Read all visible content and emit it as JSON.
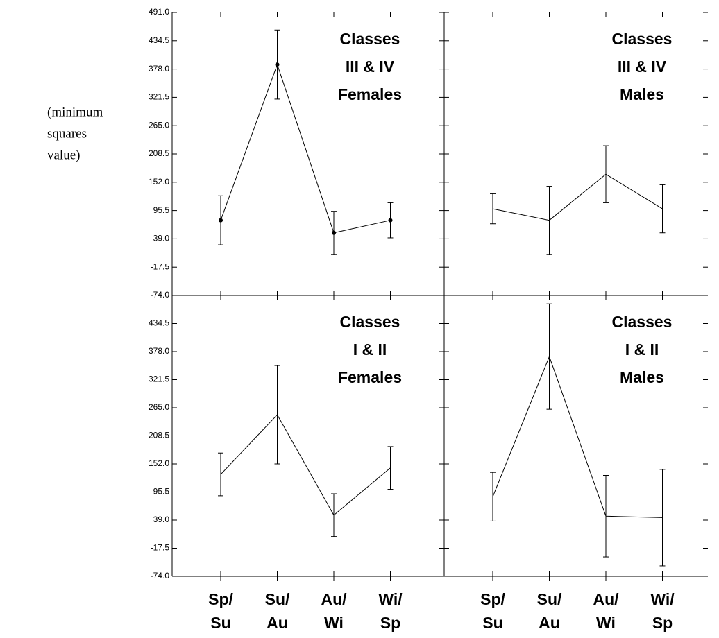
{
  "annotation": [
    "(minimum",
    "squares",
    "value)"
  ],
  "chart_data": [
    {
      "type": "line",
      "title": [
        "Classes",
        "III & IV",
        "Females"
      ],
      "markers": true,
      "color": "#000000",
      "series": [
        {
          "values": [
            76,
            387,
            51,
            76
          ],
          "errors": [
            49,
            69,
            43,
            35
          ]
        }
      ],
      "ylim": [
        -74,
        491
      ],
      "yticks": [
        {
          "value": 491,
          "label": "491.0"
        },
        {
          "value": 434.5,
          "label": "434.5"
        },
        {
          "value": 378,
          "label": "378.0"
        },
        {
          "value": 321.5,
          "label": "321.5"
        },
        {
          "value": 265,
          "label": "265.0"
        },
        {
          "value": 208.5,
          "label": "208.5"
        },
        {
          "value": 152,
          "label": "152.0"
        },
        95.5,
        {
          "value": 39,
          "label": "39.0"
        },
        -17.5,
        {
          "value": -74,
          "label": "-74.0"
        }
      ]
    },
    {
      "type": "line",
      "title": [
        "Classes",
        "III & IV",
        "Males"
      ],
      "markers": false,
      "color": "#000000",
      "series": [
        {
          "values": [
            99,
            76,
            168,
            99
          ],
          "errors": [
            30,
            68,
            57,
            48
          ]
        }
      ],
      "ylim": [
        -74,
        491
      ]
    },
    {
      "type": "line",
      "title": [
        "Classes",
        "I & II",
        "Females"
      ],
      "markers": false,
      "color": "#000000",
      "categories": [
        [
          "Sp/",
          "Su"
        ],
        [
          "Su/",
          "Au"
        ],
        [
          "Au/",
          "Wi"
        ],
        [
          "Wi/",
          "Sp"
        ]
      ],
      "series": [
        {
          "values": [
            131,
            251,
            49,
            144
          ],
          "errors": [
            43,
            99,
            43,
            43
          ]
        }
      ],
      "ylim": [
        -74,
        491
      ],
      "yticks": [
        {
          "value": 434.5,
          "label": "434.5"
        },
        {
          "value": 378,
          "label": "378.0"
        },
        {
          "value": 321.5,
          "label": "321.5"
        },
        {
          "value": 265,
          "label": "265.0"
        },
        {
          "value": 208.5,
          "label": "208.5"
        },
        {
          "value": 152,
          "label": "152.0"
        },
        95.5,
        {
          "value": 39,
          "label": "39.0"
        },
        -17.5,
        {
          "value": -74,
          "label": "-74.0"
        }
      ]
    },
    {
      "type": "line",
      "title": [
        "Classes",
        "I & II",
        "Males"
      ],
      "markers": false,
      "color": "#000000",
      "categories": [
        [
          "Sp/",
          "Su"
        ],
        [
          "Su/",
          "Au"
        ],
        [
          "Au/",
          "Wi"
        ],
        [
          "Wi/",
          "Sp"
        ]
      ],
      "series": [
        {
          "values": [
            86,
            368,
            47,
            44
          ],
          "errors": [
            49,
            106,
            82,
            97
          ]
        }
      ],
      "ylim": [
        -74,
        491
      ]
    }
  ]
}
